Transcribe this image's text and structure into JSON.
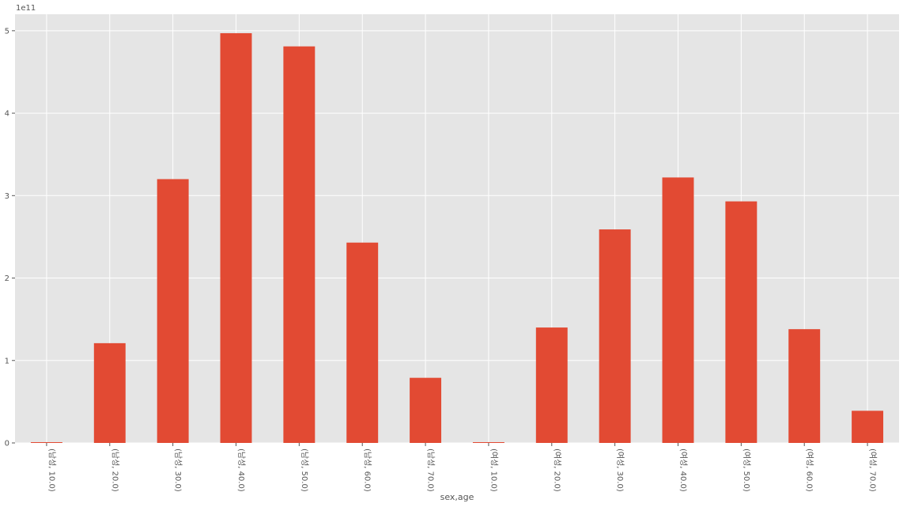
{
  "chart_data": {
    "type": "bar",
    "xlabel": "sex,age",
    "ylabel": "",
    "offset_label": "1e11",
    "categories": [
      "(남성, 10.0)",
      "(남성, 20.0)",
      "(남성, 30.0)",
      "(남성, 40.0)",
      "(남성, 50.0)",
      "(남성, 60.0)",
      "(남성, 70.0)",
      "(여성, 10.0)",
      "(여성, 20.0)",
      "(여성, 30.0)",
      "(여성, 40.0)",
      "(여성, 50.0)",
      "(여성, 60.0)",
      "(여성, 70.0)"
    ],
    "values": [
      0.001,
      1.21,
      3.2,
      4.97,
      4.81,
      2.43,
      0.79,
      0.001,
      1.4,
      2.59,
      3.22,
      2.93,
      1.38,
      0.39
    ],
    "ylim": [
      0,
      5.2
    ],
    "yticks": [
      0,
      1,
      2,
      3,
      4,
      5
    ],
    "ytick_labels": [
      "0",
      "1",
      "2",
      "3",
      "4",
      "5"
    ],
    "grid": true,
    "colors": {
      "bar": "#e24a33",
      "plot_bg": "#e5e5e5",
      "grid": "#ffffff",
      "text": "#555555"
    }
  }
}
